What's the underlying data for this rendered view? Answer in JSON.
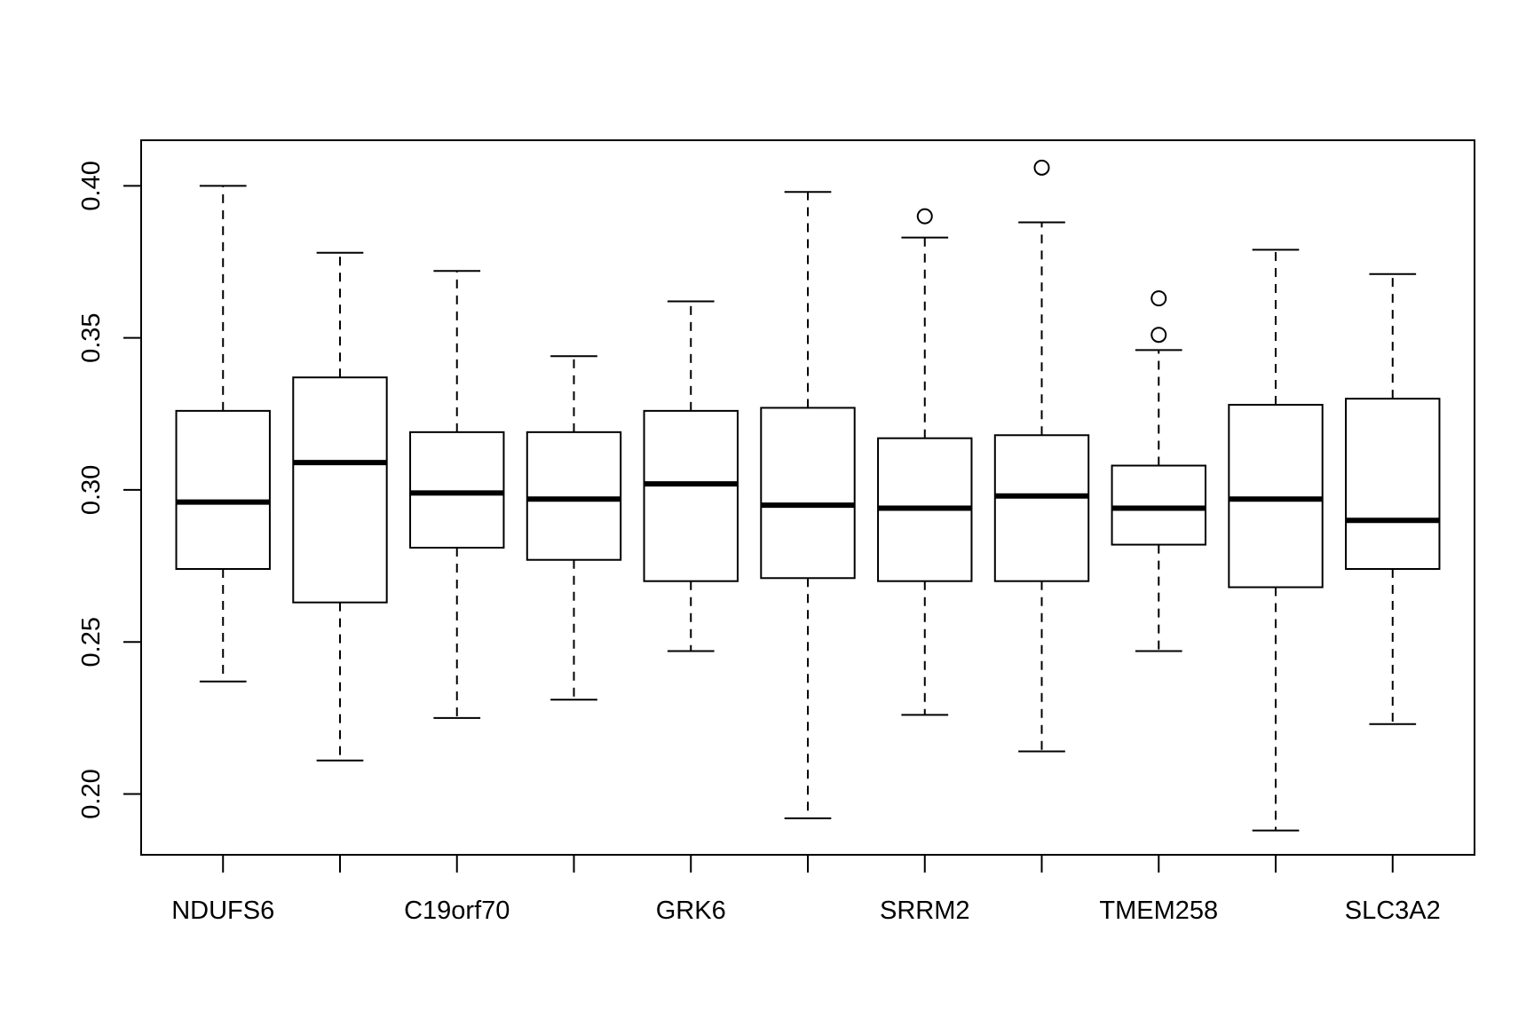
{
  "chart_data": {
    "type": "boxplot",
    "title": "",
    "xlabel": "",
    "ylabel": "",
    "ylim": [
      0.18,
      0.415
    ],
    "y_ticks": [
      0.2,
      0.25,
      0.3,
      0.35,
      0.4
    ],
    "y_tick_labels": [
      "0.20",
      "0.25",
      "0.30",
      "0.35",
      "0.40"
    ],
    "x_tick_labels_shown": [
      "NDUFS6",
      "",
      "C19orf70",
      "",
      "GRK6",
      "",
      "SRRM2",
      "",
      "TMEM258",
      "",
      "SLC3A2"
    ],
    "grid": false,
    "legend": "none",
    "boxes": [
      {
        "label": "NDUFS6",
        "whisker_low": 0.237,
        "q1": 0.274,
        "median": 0.296,
        "q3": 0.326,
        "whisker_high": 0.4,
        "outliers": []
      },
      {
        "label": "",
        "whisker_low": 0.211,
        "q1": 0.263,
        "median": 0.309,
        "q3": 0.337,
        "whisker_high": 0.378,
        "outliers": []
      },
      {
        "label": "C19orf70",
        "whisker_low": 0.225,
        "q1": 0.281,
        "median": 0.299,
        "q3": 0.319,
        "whisker_high": 0.372,
        "outliers": []
      },
      {
        "label": "",
        "whisker_low": 0.231,
        "q1": 0.277,
        "median": 0.297,
        "q3": 0.319,
        "whisker_high": 0.344,
        "outliers": []
      },
      {
        "label": "GRK6",
        "whisker_low": 0.247,
        "q1": 0.27,
        "median": 0.302,
        "q3": 0.326,
        "whisker_high": 0.362,
        "outliers": []
      },
      {
        "label": "",
        "whisker_low": 0.192,
        "q1": 0.271,
        "median": 0.295,
        "q3": 0.327,
        "whisker_high": 0.398,
        "outliers": []
      },
      {
        "label": "SRRM2",
        "whisker_low": 0.226,
        "q1": 0.27,
        "median": 0.294,
        "q3": 0.317,
        "whisker_high": 0.383,
        "outliers": [
          0.39
        ]
      },
      {
        "label": "",
        "whisker_low": 0.214,
        "q1": 0.27,
        "median": 0.298,
        "q3": 0.318,
        "whisker_high": 0.388,
        "outliers": [
          0.406
        ]
      },
      {
        "label": "TMEM258",
        "whisker_low": 0.247,
        "q1": 0.282,
        "median": 0.294,
        "q3": 0.308,
        "whisker_high": 0.346,
        "outliers": [
          0.351,
          0.363
        ]
      },
      {
        "label": "",
        "whisker_low": 0.188,
        "q1": 0.268,
        "median": 0.297,
        "q3": 0.328,
        "whisker_high": 0.379,
        "outliers": []
      },
      {
        "label": "SLC3A2",
        "whisker_low": 0.223,
        "q1": 0.274,
        "median": 0.29,
        "q3": 0.33,
        "whisker_high": 0.371,
        "outliers": []
      }
    ]
  }
}
